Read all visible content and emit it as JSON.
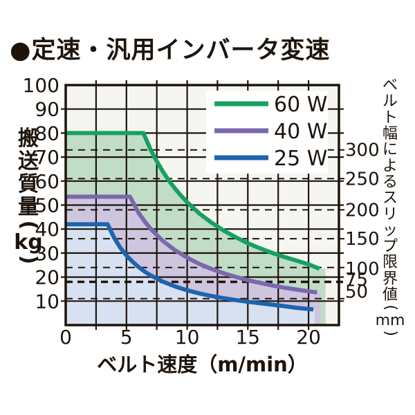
{
  "chart_data": {
    "type": "area",
    "title": "●定速・汎用インバータ変速",
    "xlabel": "ベルト速度（m/min）",
    "ylabel": {
      "text": "搬送質量(kg)",
      "stack": "搬送質量",
      "unit": "kg"
    },
    "y2label": {
      "text": "ベルト幅によるスリップ限界値(mm)",
      "stack": "ベルト幅によるスリップ限界値",
      "unit": "mm"
    },
    "xlim": [
      0,
      22.5
    ],
    "ylim": [
      0,
      100
    ],
    "x_ticks": [
      0,
      5,
      10,
      15,
      20
    ],
    "x_grid_step": 2.5,
    "y_ticks": [
      10,
      20,
      30,
      40,
      50,
      60,
      70,
      80,
      90,
      100
    ],
    "y_grid_step": 10,
    "grid": true,
    "plot_bg": "#f5f5f2",
    "grid_color": "#1d140c",
    "legend_position": "top-right-inside",
    "right_axis_ticks": [
      {
        "label": "300",
        "kg": 73,
        "label_kg": 73,
        "bold": false
      },
      {
        "label": "250",
        "kg": 61,
        "label_kg": 61,
        "bold": false
      },
      {
        "label": "200",
        "kg": 48,
        "label_kg": 48,
        "bold": false
      },
      {
        "label": "150",
        "kg": 36,
        "label_kg": 36,
        "bold": false
      },
      {
        "label": "100",
        "kg": 24,
        "label_kg": 23.5,
        "bold": false
      },
      {
        "label": "75",
        "kg": 18,
        "label_kg": 19,
        "bold": true
      },
      {
        "label": "50",
        "kg": 11,
        "label_kg": 14,
        "bold": false
      }
    ],
    "series": [
      {
        "name": "60 W",
        "color": "#16a163",
        "fill": "#c1dcc7",
        "fill_end_x": 21.4,
        "points": [
          [
            0,
            80
          ],
          [
            6.4,
            80
          ],
          [
            7,
            73
          ],
          [
            7.5,
            68.3
          ],
          [
            8,
            64
          ],
          [
            8.5,
            60.2
          ],
          [
            9,
            56.9
          ],
          [
            9.5,
            53.9
          ],
          [
            10,
            51.2
          ],
          [
            11,
            46.5
          ],
          [
            12,
            42.7
          ],
          [
            13,
            39.4
          ],
          [
            14,
            36.6
          ],
          [
            15,
            34.1
          ],
          [
            16,
            32
          ],
          [
            17,
            30.1
          ],
          [
            18,
            28.4
          ],
          [
            19,
            26.9
          ],
          [
            20,
            25.3
          ],
          [
            20.9,
            23.5
          ]
        ]
      },
      {
        "name": "40 W",
        "color": "#7b68ac",
        "fill": "#cec5df",
        "fill_end_x": 21.0,
        "points": [
          [
            0,
            53.5
          ],
          [
            5.3,
            53.5
          ],
          [
            6,
            46.8
          ],
          [
            6.5,
            43.2
          ],
          [
            7,
            40.1
          ],
          [
            7.5,
            37.5
          ],
          [
            8,
            35.1
          ],
          [
            9,
            31.2
          ],
          [
            10,
            28.1
          ],
          [
            11,
            25.5
          ],
          [
            12,
            23.4
          ],
          [
            13,
            21.6
          ],
          [
            14,
            20.1
          ],
          [
            15,
            18.7
          ],
          [
            16,
            17.6
          ],
          [
            17,
            16.5
          ],
          [
            18,
            15.6
          ],
          [
            19,
            14.8
          ],
          [
            20,
            14.1
          ],
          [
            20.7,
            13.6
          ]
        ]
      },
      {
        "name": "25 W",
        "color": "#1d64af",
        "fill": "#d7e1f1",
        "fill_end_x": 20.5,
        "points": [
          [
            0,
            42
          ],
          [
            3.45,
            42
          ],
          [
            4,
            36.3
          ],
          [
            4.5,
            32.2
          ],
          [
            5,
            29
          ],
          [
            5.5,
            26.4
          ],
          [
            6,
            24.2
          ],
          [
            6.5,
            22.3
          ],
          [
            7,
            20.7
          ],
          [
            8,
            18.1
          ],
          [
            9,
            16.1
          ],
          [
            10,
            14.5
          ],
          [
            11,
            13.2
          ],
          [
            12,
            12.1
          ],
          [
            13,
            11.2
          ],
          [
            14,
            10.4
          ],
          [
            15,
            9.7
          ],
          [
            16,
            9.1
          ],
          [
            17,
            8.5
          ],
          [
            18,
            7.9
          ],
          [
            19,
            7.2
          ],
          [
            20.4,
            6.5
          ]
        ]
      }
    ],
    "legend": [
      {
        "label": "60 W"
      },
      {
        "label": "40 W"
      },
      {
        "label": "25 W"
      }
    ]
  }
}
